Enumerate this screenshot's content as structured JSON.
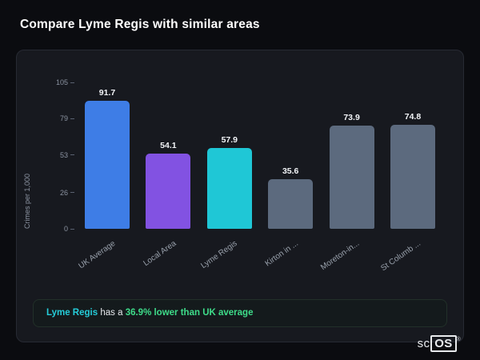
{
  "page": {
    "title": "Compare Lyme Regis with similar areas"
  },
  "chart_data": {
    "type": "bar",
    "categories": [
      "UK Average",
      "Local Area",
      "Lyme Regis",
      "Kirton in ...",
      "Moreton-in...",
      "St Columb ..."
    ],
    "values": [
      91.7,
      54.1,
      57.9,
      35.6,
      73.9,
      74.8
    ],
    "value_labels": [
      "91.7",
      "54.1",
      "57.9",
      "35.6",
      "73.9",
      "74.8"
    ],
    "bar_colors": [
      "#3e7de6",
      "#8252e2",
      "#1fc7d6",
      "#5c6a7e",
      "#5c6a7e",
      "#5c6a7e"
    ],
    "title": "",
    "xlabel": "",
    "ylabel": "Crimes per 1,000",
    "ylim": [
      0,
      105
    ],
    "yticks": [
      105,
      79,
      53,
      26,
      0
    ],
    "grid": false,
    "legend": "none",
    "label_rotation_deg": -35
  },
  "note": {
    "area_label": "Lyme Regis",
    "connector": "has a",
    "stat": "36.9% lower than UK average"
  },
  "logo": {
    "prefix": "sc",
    "suffix": "OS",
    "reg": "®"
  },
  "colors": {
    "page_bg": "#0b0c10",
    "card_bg": "#17191f",
    "accent_cyan": "#1fc7d6",
    "accent_green": "#3edc8a",
    "accent_blue": "#3e7de6",
    "accent_purple": "#8252e2",
    "muted_bar": "#5c6a7e"
  }
}
